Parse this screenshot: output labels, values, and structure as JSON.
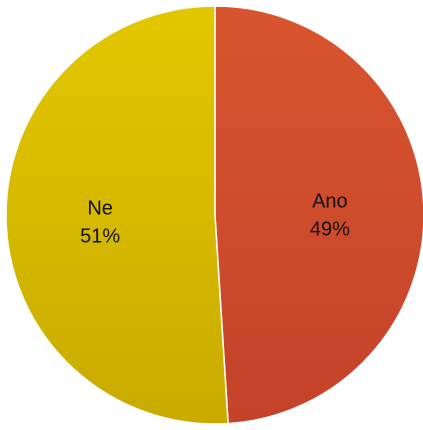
{
  "chart_data": {
    "type": "pie",
    "start": "top",
    "direction": "clockwise",
    "slices": [
      {
        "label": "Ano",
        "value": 49,
        "percent_label": "49%",
        "color": "#d9552f",
        "shade": "#c4422a"
      },
      {
        "label": "Ne",
        "value": 51,
        "percent_label": "51%",
        "color": "#e3c700",
        "shade": "#c9ab00"
      }
    ]
  }
}
